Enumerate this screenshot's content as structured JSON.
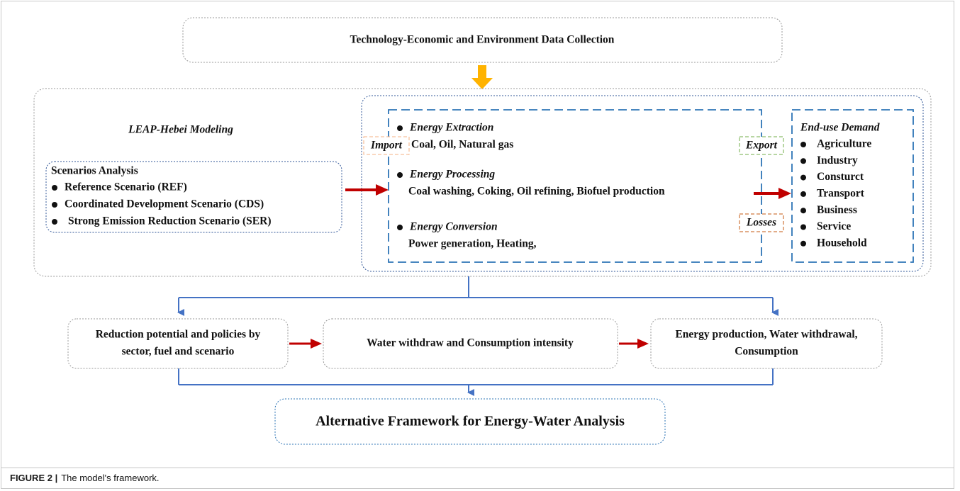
{
  "top_box": "Technology-Economic and Environment Data Collection",
  "model": {
    "title": "LEAP-Hebei Modeling",
    "scenarios": {
      "heading": "Scenarios Analysis",
      "items": [
        "Reference Scenario (REF)",
        "Coordinated Development Scenario (CDS)",
        "Strong Emission Reduction Scenario (SER)"
      ]
    },
    "stages": [
      {
        "name": "Energy Extraction",
        "detail": "Coal, Oil, Natural gas"
      },
      {
        "name": "Energy Processing",
        "detail": "Coal washing, Coking, Oil refining, Biofuel production"
      },
      {
        "name": "Energy Conversion",
        "detail": "Power generation, Heating,"
      }
    ],
    "flows": {
      "import": "Import",
      "export": "Export",
      "losses": "Losses"
    },
    "end_use": {
      "heading": "End-use Demand",
      "items": [
        "Agriculture",
        "Industry",
        "Consturct",
        "Transport",
        "Business",
        "Service",
        "Household"
      ]
    }
  },
  "outputs": [
    {
      "lines": [
        "Reduction potential and policies by",
        "sector, fuel and scenario"
      ]
    },
    {
      "lines": [
        "Water withdraw and Consumption  intensity"
      ]
    },
    {
      "lines": [
        "Energy production, Water withdrawal,",
        "Consumption"
      ]
    }
  ],
  "final": "Alternative Framework for Energy-Water Analysis",
  "caption": {
    "label": "FIGURE 2 |",
    "text": "The model's framework."
  }
}
